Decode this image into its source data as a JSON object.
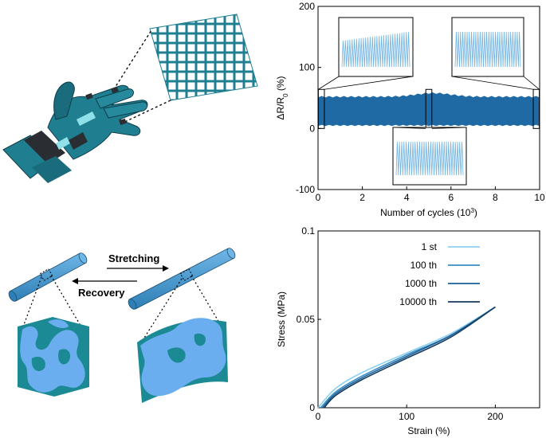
{
  "schematics": {
    "stretching_label": "Stretching",
    "recovery_label": "Recovery"
  },
  "chart_data": [
    {
      "type": "line",
      "xlabel": "Number of cycles (10",
      "xlabel_sup": "3",
      "xlabel_end": ")",
      "ylabel": "ΔR/R",
      "ylabel_sub": "0",
      "ylabel_end": " (%)",
      "xlim": [
        0,
        10
      ],
      "ylim": [
        -100,
        200
      ],
      "xticks": [
        "0",
        "2",
        "4",
        "6",
        "8",
        "10"
      ],
      "yticks": [
        "-100",
        "0",
        "100",
        "200"
      ],
      "grid": false,
      "band": {
        "x_start": 0,
        "x_end": 10,
        "lower": 5,
        "upper": 52,
        "upper_mid": 58
      },
      "zoom_windows": [
        {
          "x_start": 0.05,
          "x_end": 0.25,
          "location": "top-left"
        },
        {
          "x_start": 4.9,
          "x_end": 5.1,
          "location": "bottom-center"
        },
        {
          "x_start": 9.75,
          "x_end": 9.95,
          "location": "top-right"
        }
      ],
      "color": "#1f6aa5"
    },
    {
      "type": "line",
      "xlabel": "Strain (%)",
      "ylabel": "Stress (MPa)",
      "xlim": [
        0,
        250
      ],
      "ylim": [
        0,
        0.1
      ],
      "xticks": [
        "0",
        "100",
        "200"
      ],
      "yticks": [
        "0",
        "0.05",
        "0.1"
      ],
      "grid": false,
      "legend_placement": "top-center",
      "series": [
        {
          "name": "1 st",
          "color": "#8fd1f0",
          "x": [
            0,
            20,
            50,
            100,
            150,
            200
          ],
          "y": [
            0,
            0.011,
            0.02,
            0.031,
            0.042,
            0.057
          ]
        },
        {
          "name": "100 th",
          "color": "#3a8fc6",
          "x": [
            3,
            20,
            50,
            100,
            150,
            200
          ],
          "y": [
            0,
            0.009,
            0.018,
            0.03,
            0.041,
            0.057
          ]
        },
        {
          "name": "1000 th",
          "color": "#1a5f99",
          "x": [
            5,
            20,
            50,
            100,
            150,
            200
          ],
          "y": [
            0,
            0.008,
            0.017,
            0.029,
            0.041,
            0.057
          ]
        },
        {
          "name": "10000 th",
          "color": "#153a5c",
          "x": [
            7,
            20,
            50,
            100,
            150,
            200
          ],
          "y": [
            0,
            0.007,
            0.016,
            0.028,
            0.04,
            0.057
          ]
        }
      ]
    }
  ]
}
